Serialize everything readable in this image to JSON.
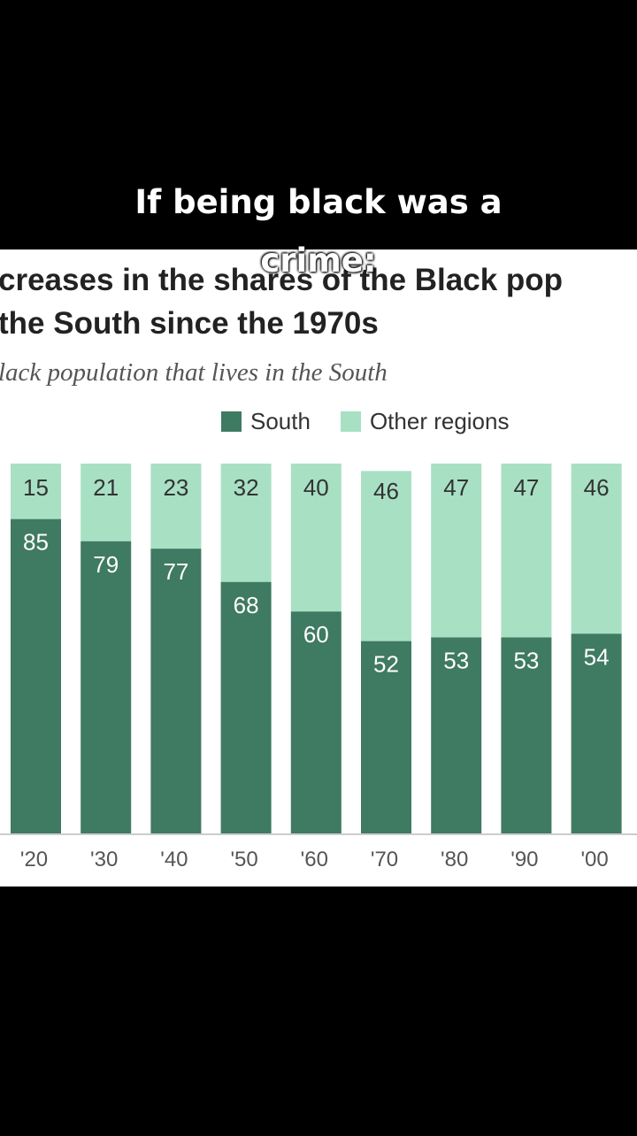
{
  "caption": {
    "line1": "If being black was a",
    "line2": "crime:"
  },
  "colors": {
    "south": "#3f7a62",
    "other": "#a8e0c3",
    "axis": "#cccccc",
    "label_dark_bg": "#ffffff",
    "label_light_bg": "#333333"
  },
  "chart_data": {
    "type": "bar",
    "stacked": true,
    "title_line1": "creases in the shares of the Black pop",
    "title_line2": " the South since the 1970s",
    "subtitle": "lack population that lives in the South",
    "categories": [
      "'20",
      "'30",
      "'40",
      "'50",
      "'60",
      "'70",
      "'80",
      "'90",
      "'00"
    ],
    "series": [
      {
        "name": "South",
        "values": [
          85,
          79,
          77,
          68,
          60,
          52,
          53,
          53,
          54
        ]
      },
      {
        "name": "Other regions",
        "values": [
          15,
          21,
          23,
          32,
          40,
          46,
          47,
          47,
          46
        ]
      }
    ],
    "ylim": [
      0,
      100
    ],
    "legend_position": "top",
    "grid": false
  }
}
